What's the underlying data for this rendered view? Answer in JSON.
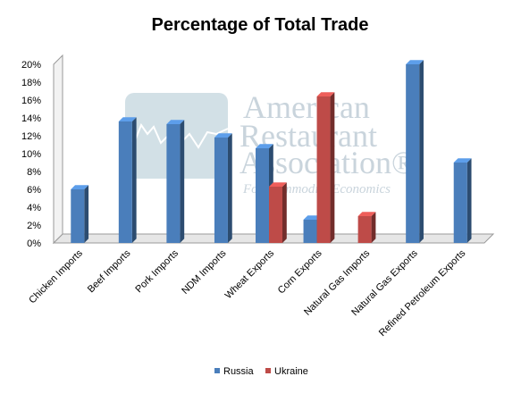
{
  "chart_data": {
    "type": "bar",
    "title": "Percentage of Total Trade",
    "xlabel": "",
    "ylabel": "",
    "ylim": [
      0,
      20
    ],
    "yticks": [
      "0%",
      "2%",
      "4%",
      "6%",
      "8%",
      "10%",
      "12%",
      "14%",
      "16%",
      "18%",
      "20%"
    ],
    "categories": [
      "Chicken Imports",
      "Beef Imports",
      "Pork Imports",
      "NDM Imports",
      "Wheat Exports",
      "Corn Exports",
      "Natural Gas Imports",
      "Natural Gas Exports",
      "Refined Petroleum Exports"
    ],
    "series": [
      {
        "name": "Russia",
        "color": "#4a7ebb",
        "values": [
          6,
          13.6,
          13.3,
          11.8,
          10.6,
          2.6,
          null,
          20,
          9
        ]
      },
      {
        "name": "Ukraine",
        "color": "#be4b48",
        "values": [
          null,
          null,
          null,
          null,
          6.3,
          16.4,
          null,
          null,
          null
        ]
      },
      {
        "name": "Ukraine",
        "color": "#be4b48",
        "values": [
          null,
          null,
          null,
          null,
          null,
          null,
          3,
          null,
          null
        ]
      }
    ],
    "grid": false,
    "legend_position": "bottom"
  },
  "legend": [
    {
      "label": "Russia",
      "color": "#4a7ebb"
    },
    {
      "label": "Ukraine",
      "color": "#be4b48"
    }
  ],
  "watermark": {
    "lines": [
      "American",
      "Restaurant",
      "Association®"
    ],
    "tagline": "For Commodity Economics"
  }
}
